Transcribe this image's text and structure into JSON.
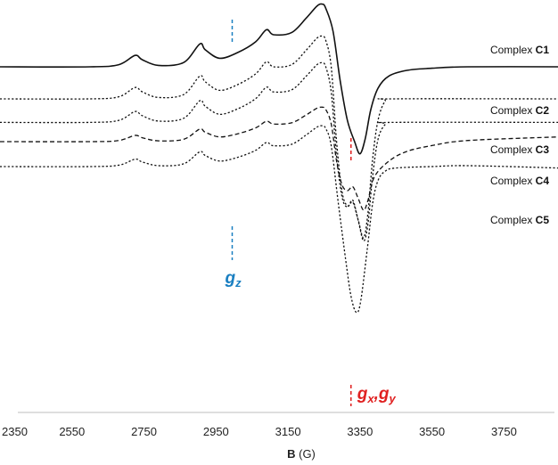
{
  "chart_data": {
    "type": "line",
    "title": "",
    "xlabel": {
      "bold": "B",
      "unit": " (G)"
    },
    "ylabel": "",
    "xlim": [
      2350,
      3900
    ],
    "xticks": [
      2350,
      2550,
      2750,
      2950,
      3150,
      3350,
      3550,
      3750
    ],
    "grid": false,
    "legend": "labels at right end of each trace",
    "series": [
      {
        "prefix": "Complex ",
        "bold": "C1",
        "style": "solid",
        "baseline": 0.0,
        "scale": 1.0,
        "points": [
          [
            2350,
            0
          ],
          [
            2600,
            0
          ],
          [
            2680,
            0.3
          ],
          [
            2725,
            1.6
          ],
          [
            2745,
            1.0
          ],
          [
            2790,
            0.2
          ],
          [
            2860,
            0.6
          ],
          [
            2905,
            3.2
          ],
          [
            2920,
            2.4
          ],
          [
            2960,
            1.2
          ],
          [
            3010,
            2.0
          ],
          [
            3060,
            3.5
          ],
          [
            3090,
            5.2
          ],
          [
            3110,
            4.5
          ],
          [
            3160,
            4.8
          ],
          [
            3200,
            6.8
          ],
          [
            3230,
            8.5
          ],
          [
            3245,
            8.8
          ],
          [
            3255,
            8.2
          ],
          [
            3275,
            5.0
          ],
          [
            3295,
            -2.0
          ],
          [
            3315,
            -7.5
          ],
          [
            3335,
            -10.5
          ],
          [
            3350,
            -12.2
          ],
          [
            3365,
            -10.0
          ],
          [
            3380,
            -6.0
          ],
          [
            3400,
            -3.0
          ],
          [
            3430,
            -1.3
          ],
          [
            3480,
            -0.5
          ],
          [
            3550,
            -0.2
          ],
          [
            3650,
            0
          ],
          [
            3900,
            0
          ]
        ]
      },
      {
        "prefix": "Complex ",
        "bold": "C2",
        "style": "dotted",
        "baseline": -4.5,
        "scale": 1.0,
        "points": [
          [
            2350,
            0
          ],
          [
            2600,
            0
          ],
          [
            2680,
            0.3
          ],
          [
            2725,
            1.6
          ],
          [
            2745,
            1.0
          ],
          [
            2790,
            0.2
          ],
          [
            2860,
            0.6
          ],
          [
            2905,
            3.2
          ],
          [
            2920,
            2.4
          ],
          [
            2960,
            1.2
          ],
          [
            3010,
            2.0
          ],
          [
            3060,
            3.5
          ],
          [
            3090,
            5.2
          ],
          [
            3110,
            4.5
          ],
          [
            3160,
            4.8
          ],
          [
            3200,
            6.8
          ],
          [
            3230,
            8.5
          ],
          [
            3245,
            8.8
          ],
          [
            3255,
            8.2
          ],
          [
            3270,
            4.5
          ],
          [
            3285,
            -6.0
          ],
          [
            3300,
            -13.0
          ],
          [
            3315,
            -15.0
          ],
          [
            3330,
            -14.5
          ],
          [
            3345,
            -17.0
          ],
          [
            3360,
            -19.5
          ],
          [
            3372,
            -16.0
          ],
          [
            3385,
            -8.5
          ],
          [
            3400,
            -3.0
          ],
          [
            3420,
            -0.3
          ],
          [
            3440,
            0.0
          ],
          [
            3900,
            0
          ]
        ]
      },
      {
        "prefix": "Complex ",
        "bold": "C3",
        "style": "dotted",
        "baseline": -7.8,
        "scale": 0.95,
        "points": [
          [
            2350,
            0
          ],
          [
            2600,
            0
          ],
          [
            2680,
            0.3
          ],
          [
            2725,
            1.6
          ],
          [
            2745,
            1.0
          ],
          [
            2790,
            0.2
          ],
          [
            2860,
            0.6
          ],
          [
            2905,
            3.2
          ],
          [
            2920,
            2.4
          ],
          [
            2960,
            1.2
          ],
          [
            3010,
            2.0
          ],
          [
            3060,
            3.5
          ],
          [
            3090,
            5.2
          ],
          [
            3110,
            4.5
          ],
          [
            3160,
            4.8
          ],
          [
            3200,
            6.8
          ],
          [
            3230,
            8.5
          ],
          [
            3245,
            8.8
          ],
          [
            3255,
            8.2
          ],
          [
            3270,
            4.5
          ],
          [
            3285,
            -5.0
          ],
          [
            3300,
            -11.0
          ],
          [
            3315,
            -12.5
          ],
          [
            3330,
            -11.5
          ],
          [
            3345,
            -14.5
          ],
          [
            3360,
            -17.5
          ],
          [
            3372,
            -15.0
          ],
          [
            3385,
            -8.0
          ],
          [
            3400,
            -2.5
          ],
          [
            3420,
            -0.3
          ],
          [
            3440,
            0.0
          ],
          [
            3900,
            0
          ]
        ]
      },
      {
        "prefix": "Complex ",
        "bold": "C4",
        "style": "dashed",
        "baseline": -10.5,
        "scale": 0.55,
        "points": [
          [
            2350,
            0
          ],
          [
            2600,
            0
          ],
          [
            2680,
            0.3
          ],
          [
            2725,
            1.6
          ],
          [
            2745,
            1.0
          ],
          [
            2790,
            0.2
          ],
          [
            2860,
            0.6
          ],
          [
            2905,
            3.2
          ],
          [
            2920,
            2.4
          ],
          [
            2960,
            1.2
          ],
          [
            3010,
            2.0
          ],
          [
            3060,
            3.5
          ],
          [
            3090,
            5.2
          ],
          [
            3110,
            4.5
          ],
          [
            3160,
            4.8
          ],
          [
            3200,
            6.8
          ],
          [
            3230,
            8.5
          ],
          [
            3245,
            8.8
          ],
          [
            3255,
            8.2
          ],
          [
            3270,
            4.5
          ],
          [
            3285,
            -5.0
          ],
          [
            3300,
            -11.0
          ],
          [
            3315,
            -12.5
          ],
          [
            3330,
            -11.5
          ],
          [
            3345,
            -14.5
          ],
          [
            3360,
            -17.5
          ],
          [
            3372,
            -15.0
          ],
          [
            3390,
            -9.0
          ],
          [
            3430,
            -5.0
          ],
          [
            3480,
            -2.5
          ],
          [
            3550,
            -1.0
          ],
          [
            3650,
            0.3
          ],
          [
            3900,
            1.2
          ]
        ]
      },
      {
        "prefix": "Complex ",
        "bold": "C5",
        "style": "dotted",
        "baseline": -14.0,
        "scale": 0.65,
        "points": [
          [
            2350,
            0
          ],
          [
            2600,
            0
          ],
          [
            2680,
            0.3
          ],
          [
            2725,
            1.6
          ],
          [
            2745,
            1.0
          ],
          [
            2790,
            0.2
          ],
          [
            2860,
            0.6
          ],
          [
            2905,
            3.2
          ],
          [
            2920,
            2.4
          ],
          [
            2960,
            1.2
          ],
          [
            3010,
            2.0
          ],
          [
            3060,
            3.5
          ],
          [
            3090,
            5.2
          ],
          [
            3110,
            4.5
          ],
          [
            3160,
            4.8
          ],
          [
            3200,
            6.8
          ],
          [
            3230,
            8.5
          ],
          [
            3245,
            8.8
          ],
          [
            3255,
            8.2
          ],
          [
            3270,
            4.5
          ],
          [
            3290,
            -8.0
          ],
          [
            3310,
            -20.0
          ],
          [
            3325,
            -28.0
          ],
          [
            3340,
            -31.5
          ],
          [
            3352,
            -29.0
          ],
          [
            3370,
            -18.0
          ],
          [
            3385,
            -8.0
          ],
          [
            3400,
            -3.0
          ],
          [
            3420,
            -1.0
          ],
          [
            3450,
            -0.3
          ],
          [
            3550,
            0.0
          ],
          [
            3650,
            0.2
          ],
          [
            3900,
            -0.3
          ]
        ]
      }
    ],
    "annotations": [
      {
        "id": "gz",
        "label": "g",
        "sub": "z",
        "x": 2995,
        "color": "#1a7fc1"
      },
      {
        "id": "gxy",
        "label": "g",
        "sub": "x",
        "label2": "g",
        "sub2": "y",
        "x": 3325,
        "color": "#e02020"
      }
    ]
  }
}
